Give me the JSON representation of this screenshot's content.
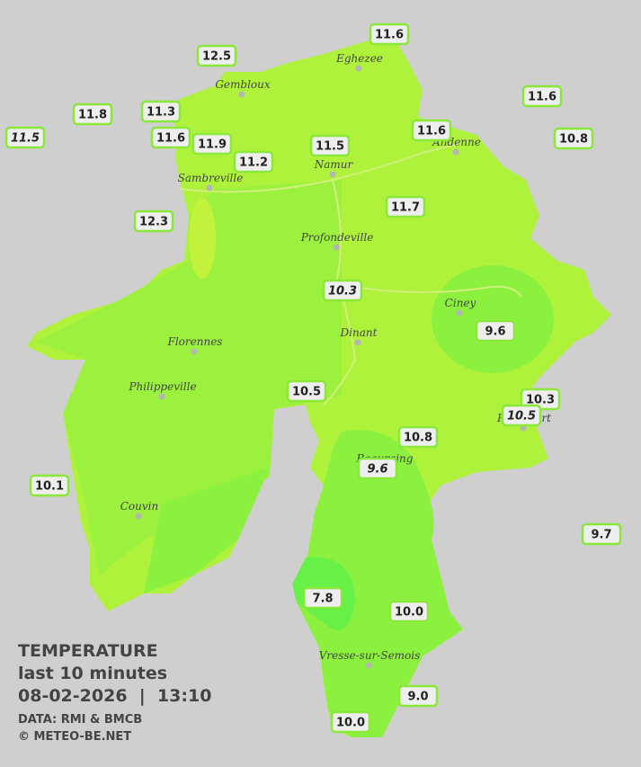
{
  "title": "TEMPERATURE",
  "subtitle": "last 10 minutes",
  "datetime": "08-02-2026  |  13:10",
  "source": "DATA: RMI & BMCB",
  "credit": "© METEO-BE.NET",
  "towns": [
    {
      "name": "Eghezee"
    },
    {
      "name": "Gembloux"
    },
    {
      "name": "Andenne"
    },
    {
      "name": "Namur"
    },
    {
      "name": "Sambreville"
    },
    {
      "name": "Profondeville"
    },
    {
      "name": "Ciney"
    },
    {
      "name": "Dinant"
    },
    {
      "name": "Florennes"
    },
    {
      "name": "Philippeville"
    },
    {
      "name": "Rochefort"
    },
    {
      "name": "Beauraing"
    },
    {
      "name": "Couvin"
    },
    {
      "name": "Vresse-sur-Semois"
    }
  ],
  "stations": [
    {
      "value": "11.6"
    },
    {
      "value": "12.5"
    },
    {
      "value": "11.6"
    },
    {
      "value": "11.8"
    },
    {
      "value": "11.3"
    },
    {
      "value": "11.5",
      "italic": true
    },
    {
      "value": "11.6"
    },
    {
      "value": "11.9"
    },
    {
      "value": "11.6"
    },
    {
      "value": "11.5"
    },
    {
      "value": "10.8"
    },
    {
      "value": "11.2"
    },
    {
      "value": "11.7"
    },
    {
      "value": "12.3"
    },
    {
      "value": "10.3",
      "italic": true
    },
    {
      "value": "9.6"
    },
    {
      "value": "10.5"
    },
    {
      "value": "10.3"
    },
    {
      "value": "10.5",
      "italic": true
    },
    {
      "value": "10.8"
    },
    {
      "value": "9.6",
      "italic": true
    },
    {
      "value": "10.1"
    },
    {
      "value": "9.7"
    },
    {
      "value": "7.8"
    },
    {
      "value": "10.0"
    },
    {
      "value": "9.0"
    },
    {
      "value": "10.0"
    }
  ]
}
